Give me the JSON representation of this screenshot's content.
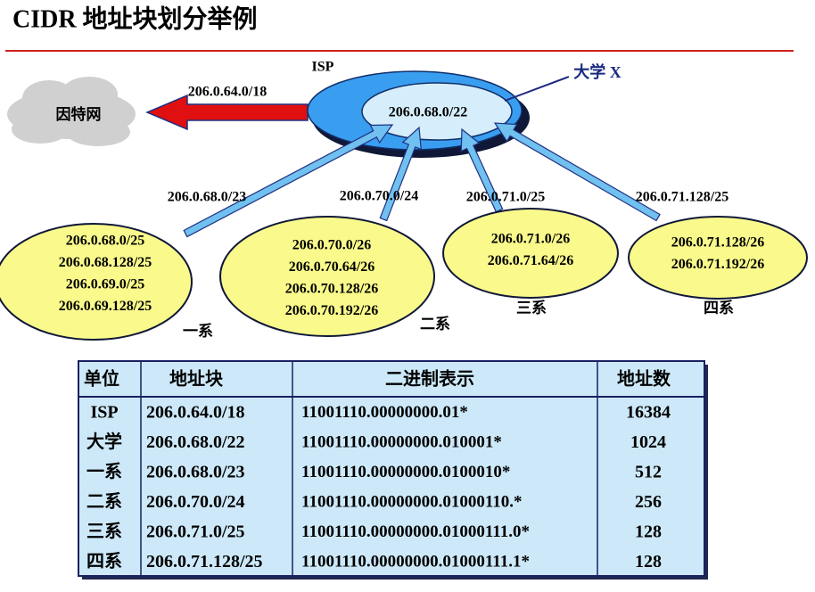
{
  "title": "CIDR 地址块划分举例",
  "diagram": {
    "internet": "因特网",
    "isp_label": "ISP",
    "isp_block": "206.0.64.0/18",
    "university_label": "大学 X",
    "university_block": "206.0.68.0/22",
    "departments": [
      {
        "name": "一系",
        "block": "206.0.68.0/23",
        "subnets": [
          "206.0.68.0/25",
          "206.0.68.128/25",
          "206.0.69.0/25",
          "206.0.69.128/25"
        ]
      },
      {
        "name": "二系",
        "block": "206.0.70.0/24",
        "subnets": [
          "206.0.70.0/26",
          "206.0.70.64/26",
          "206.0.70.128/26",
          "206.0.70.192/26"
        ]
      },
      {
        "name": "三系",
        "block": "206.0.71.0/25",
        "subnets": [
          "206.0.71.0/26",
          "206.0.71.64/26"
        ]
      },
      {
        "name": "四系",
        "block": "206.0.71.128/25",
        "subnets": [
          "206.0.71.128/26",
          "206.0.71.192/26"
        ]
      }
    ]
  },
  "table": {
    "header": [
      "单位",
      "地址块",
      "二进制表示",
      "地址数"
    ],
    "rows": [
      [
        "ISP",
        "206.0.64.0/18",
        "11001110.00000000.01*",
        16384
      ],
      [
        "大学",
        "206.0.68.0/22",
        "11001110.00000000.010001*",
        1024
      ],
      [
        "一系",
        "206.0.68.0/23",
        "11001110.00000000.0100010*",
        512
      ],
      [
        "二系",
        "206.0.70.0/24",
        "11001110.00000000.01000110.*",
        256
      ],
      [
        "三系",
        "206.0.71.0/25",
        "11001110.00000000.01000111.0*",
        128
      ],
      [
        "四系",
        "206.0.71.128/25",
        "11001110.00000000.01000111.1*",
        128
      ]
    ]
  }
}
